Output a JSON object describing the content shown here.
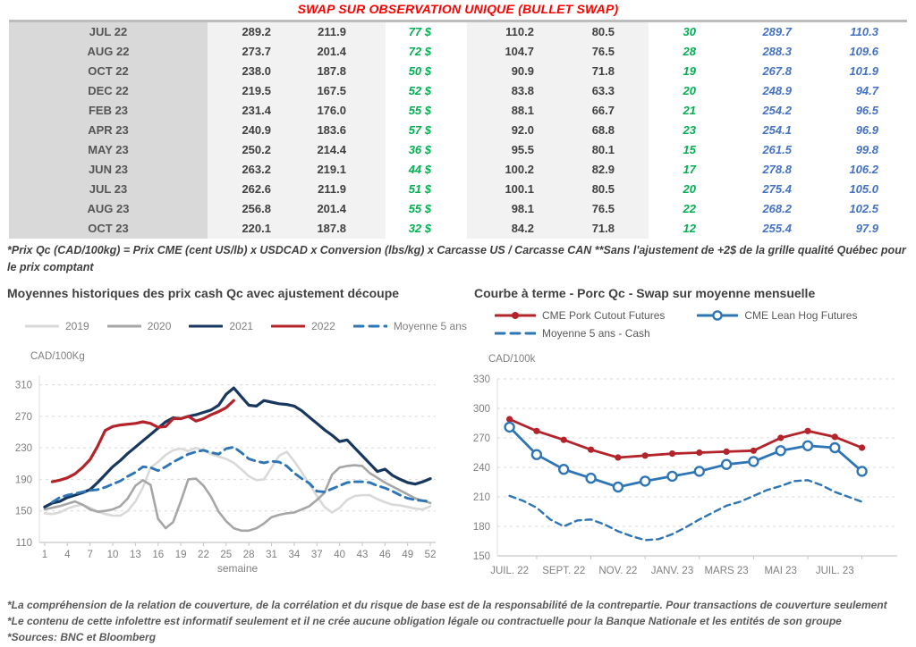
{
  "title": "SWAP SUR OBSERVATION UNIQUE (BULLET SWAP)",
  "table": {
    "rows": [
      [
        "JUL 22",
        "289.2",
        "211.9",
        "77 $",
        "110.2",
        "80.5",
        "30",
        "289.7",
        "110.3"
      ],
      [
        "AUG 22",
        "273.7",
        "201.4",
        "72 $",
        "104.7",
        "76.5",
        "28",
        "288.3",
        "109.6"
      ],
      [
        "OCT 22",
        "238.0",
        "187.8",
        "50 $",
        "90.9",
        "71.8",
        "19",
        "267.8",
        "101.9"
      ],
      [
        "DEC 22",
        "219.5",
        "167.5",
        "52 $",
        "83.8",
        "63.3",
        "20",
        "248.9",
        "94.7"
      ],
      [
        "FEB 23",
        "231.4",
        "176.0",
        "55 $",
        "88.1",
        "66.7",
        "21",
        "254.2",
        "96.5"
      ],
      [
        "APR 23",
        "240.9",
        "183.6",
        "57 $",
        "92.0",
        "68.8",
        "23",
        "254.1",
        "96.9"
      ],
      [
        "MAY 23",
        "250.2",
        "214.4",
        "36 $",
        "95.5",
        "80.1",
        "15",
        "261.5",
        "99.8"
      ],
      [
        "JUN 23",
        "263.2",
        "219.1",
        "44 $",
        "100.2",
        "82.9",
        "17",
        "278.8",
        "106.2"
      ],
      [
        "JUL 23",
        "262.6",
        "211.9",
        "51 $",
        "100.1",
        "80.5",
        "20",
        "275.4",
        "105.0"
      ],
      [
        "AUG 23",
        "256.8",
        "201.4",
        "55 $",
        "98.1",
        "76.5",
        "22",
        "268.2",
        "102.5"
      ],
      [
        "OCT 23",
        "220.1",
        "187.8",
        "32 $",
        "84.2",
        "71.8",
        "12",
        "255.4",
        "97.9"
      ]
    ]
  },
  "table_footnote": "*Prix Qc (CAD/100kg) = Prix CME (cent US/lb) x USDCAD x Conversion (lbs/kg) x Carcasse US / Carcasse CAN **Sans l'ajustement de +2$ de la grille qualité Québec pour le prix comptant",
  "colors": {
    "title_red": "#ff0000",
    "green_text": "#00b050",
    "blue_text": "#4472c4"
  },
  "chart_data": [
    {
      "type": "line",
      "title": "Moyennes historiques des prix cash Qc avec ajustement découpe",
      "ylabel": "CAD/100Kg",
      "xlabel": "semaine",
      "xlim": [
        0.3,
        52.7
      ],
      "ylim": [
        110,
        322
      ],
      "yticks": [
        110,
        150,
        190,
        230,
        270,
        310
      ],
      "xticks": [
        1,
        4,
        7,
        10,
        13,
        16,
        19,
        22,
        25,
        28,
        31,
        34,
        37,
        40,
        43,
        46,
        49,
        52
      ],
      "series": [
        {
          "name": "2019",
          "color": "#d9d9d9",
          "width": 2.6,
          "x_start": 1,
          "values": [
            147,
            146,
            148,
            153,
            156,
            158,
            154,
            149,
            146,
            144,
            144,
            150,
            162,
            180,
            205,
            212,
            221,
            227,
            229,
            226,
            230,
            227,
            222,
            219,
            216,
            211,
            203,
            194,
            189,
            190,
            205,
            220,
            225,
            213,
            199,
            184,
            169,
            155,
            148,
            154,
            164,
            169,
            170,
            170,
            165,
            161,
            158,
            157,
            155,
            153,
            152,
            156
          ]
        },
        {
          "name": "2020",
          "color": "#a6a6a6",
          "width": 2.6,
          "x_start": 1,
          "values": [
            152,
            154,
            156,
            159,
            162,
            158,
            152,
            149,
            150,
            152,
            156,
            166,
            182,
            189,
            183,
            140,
            128,
            136,
            162,
            190,
            191,
            182,
            168,
            149,
            137,
            128,
            125,
            125,
            128,
            134,
            142,
            145,
            147,
            148,
            152,
            156,
            164,
            173,
            196,
            205,
            207,
            208,
            207,
            198,
            192,
            186,
            181,
            176,
            171,
            166,
            163,
            160
          ]
        },
        {
          "name": "2021",
          "color": "#17375e",
          "width": 3.2,
          "x_start": 1,
          "values": [
            155,
            160,
            162,
            167,
            170,
            173,
            177,
            186,
            196,
            206,
            214,
            223,
            231,
            239,
            247,
            255,
            263,
            268,
            267,
            270,
            272,
            275,
            278,
            284,
            298,
            306,
            295,
            284,
            283,
            290,
            288,
            286,
            285,
            283,
            277,
            269,
            261,
            253,
            246,
            238,
            240,
            230,
            220,
            210,
            200,
            203,
            195,
            190,
            186,
            184,
            187,
            191
          ]
        },
        {
          "name": "2022",
          "color": "#b4232a",
          "width": 3.2,
          "x_start": 2,
          "values": [
            187,
            189,
            192,
            197,
            205,
            215,
            232,
            252,
            257,
            259,
            260,
            261,
            263,
            261,
            256,
            257,
            267,
            267,
            270,
            264,
            267,
            272,
            276,
            281,
            290
          ]
        },
        {
          "name": "Moyenne 5 ans",
          "color": "#2e75b6",
          "width": 2.9,
          "dash": "9 6",
          "x_start": 2,
          "values": [
            161,
            167,
            170,
            172,
            174,
            176,
            177,
            180,
            184,
            188,
            194,
            199,
            206,
            205,
            201,
            206,
            212,
            217,
            222,
            225,
            227,
            224,
            222,
            229,
            231,
            224,
            216,
            213,
            211,
            213,
            212,
            207,
            198,
            191,
            185,
            175,
            174,
            178,
            182,
            186,
            187,
            187,
            186,
            182,
            179,
            175,
            170,
            166,
            164,
            163,
            162
          ]
        }
      ]
    },
    {
      "type": "line",
      "title": "Courbe à terme - Porc Qc - Swap sur moyenne mensuelle",
      "ylabel": "CAD/100k",
      "xlabel": "",
      "xlim": [
        -0.45,
        14.3
      ],
      "ylim": [
        150,
        330
      ],
      "yticks": [
        150,
        180,
        210,
        240,
        270,
        300,
        330
      ],
      "xticks": [
        0,
        2,
        4,
        6,
        8,
        10,
        12
      ],
      "xticklabels": [
        "JUIL. 22",
        "SEPT. 22",
        "NOV. 22",
        "JANV. 23",
        "MARS 23",
        "MAI 23",
        "JUIL. 23"
      ],
      "xminor": [
        1,
        3,
        5,
        7,
        9,
        11,
        13
      ],
      "series": [
        {
          "name": "CME Pork Cutout Futures",
          "color": "#b4232a",
          "width": 2.8,
          "marker": "filled",
          "x_start": 0,
          "values": [
            289,
            277,
            268,
            258,
            250,
            252,
            254,
            255,
            256,
            257,
            270,
            277,
            271,
            260
          ]
        },
        {
          "name": "CME Lean Hog Futures",
          "color": "#2e75b6",
          "width": 2.8,
          "marker": "open",
          "x_start": 0,
          "values": [
            281,
            253,
            238,
            229,
            220,
            226,
            231,
            236,
            243,
            246,
            257,
            262,
            260,
            236
          ]
        },
        {
          "name": "Moyenne 5 ans - Cash",
          "color": "#2e75b6",
          "width": 2.4,
          "dash": "7 5",
          "x_start": 0,
          "x_step": 0.5,
          "values": [
            211,
            206,
            199,
            187,
            180,
            186,
            187,
            182,
            175,
            170,
            166,
            167,
            172,
            179,
            187,
            194,
            201,
            205,
            211,
            217,
            221,
            226,
            227,
            222,
            215,
            210,
            205
          ]
        }
      ]
    }
  ],
  "footnotes": [
    "*La compréhension de la relation de couverture, de la corrélation et du risque de base est de la responsabilité de la contrepartie. Pour transactions de couverture seulement",
    "*Le contenu de cette infolettre est informatif seulement et il ne crée aucune obligation légale ou contractuelle pour la Banque Nationale et les entités de son groupe",
    "*Sources: BNC et Bloomberg"
  ]
}
